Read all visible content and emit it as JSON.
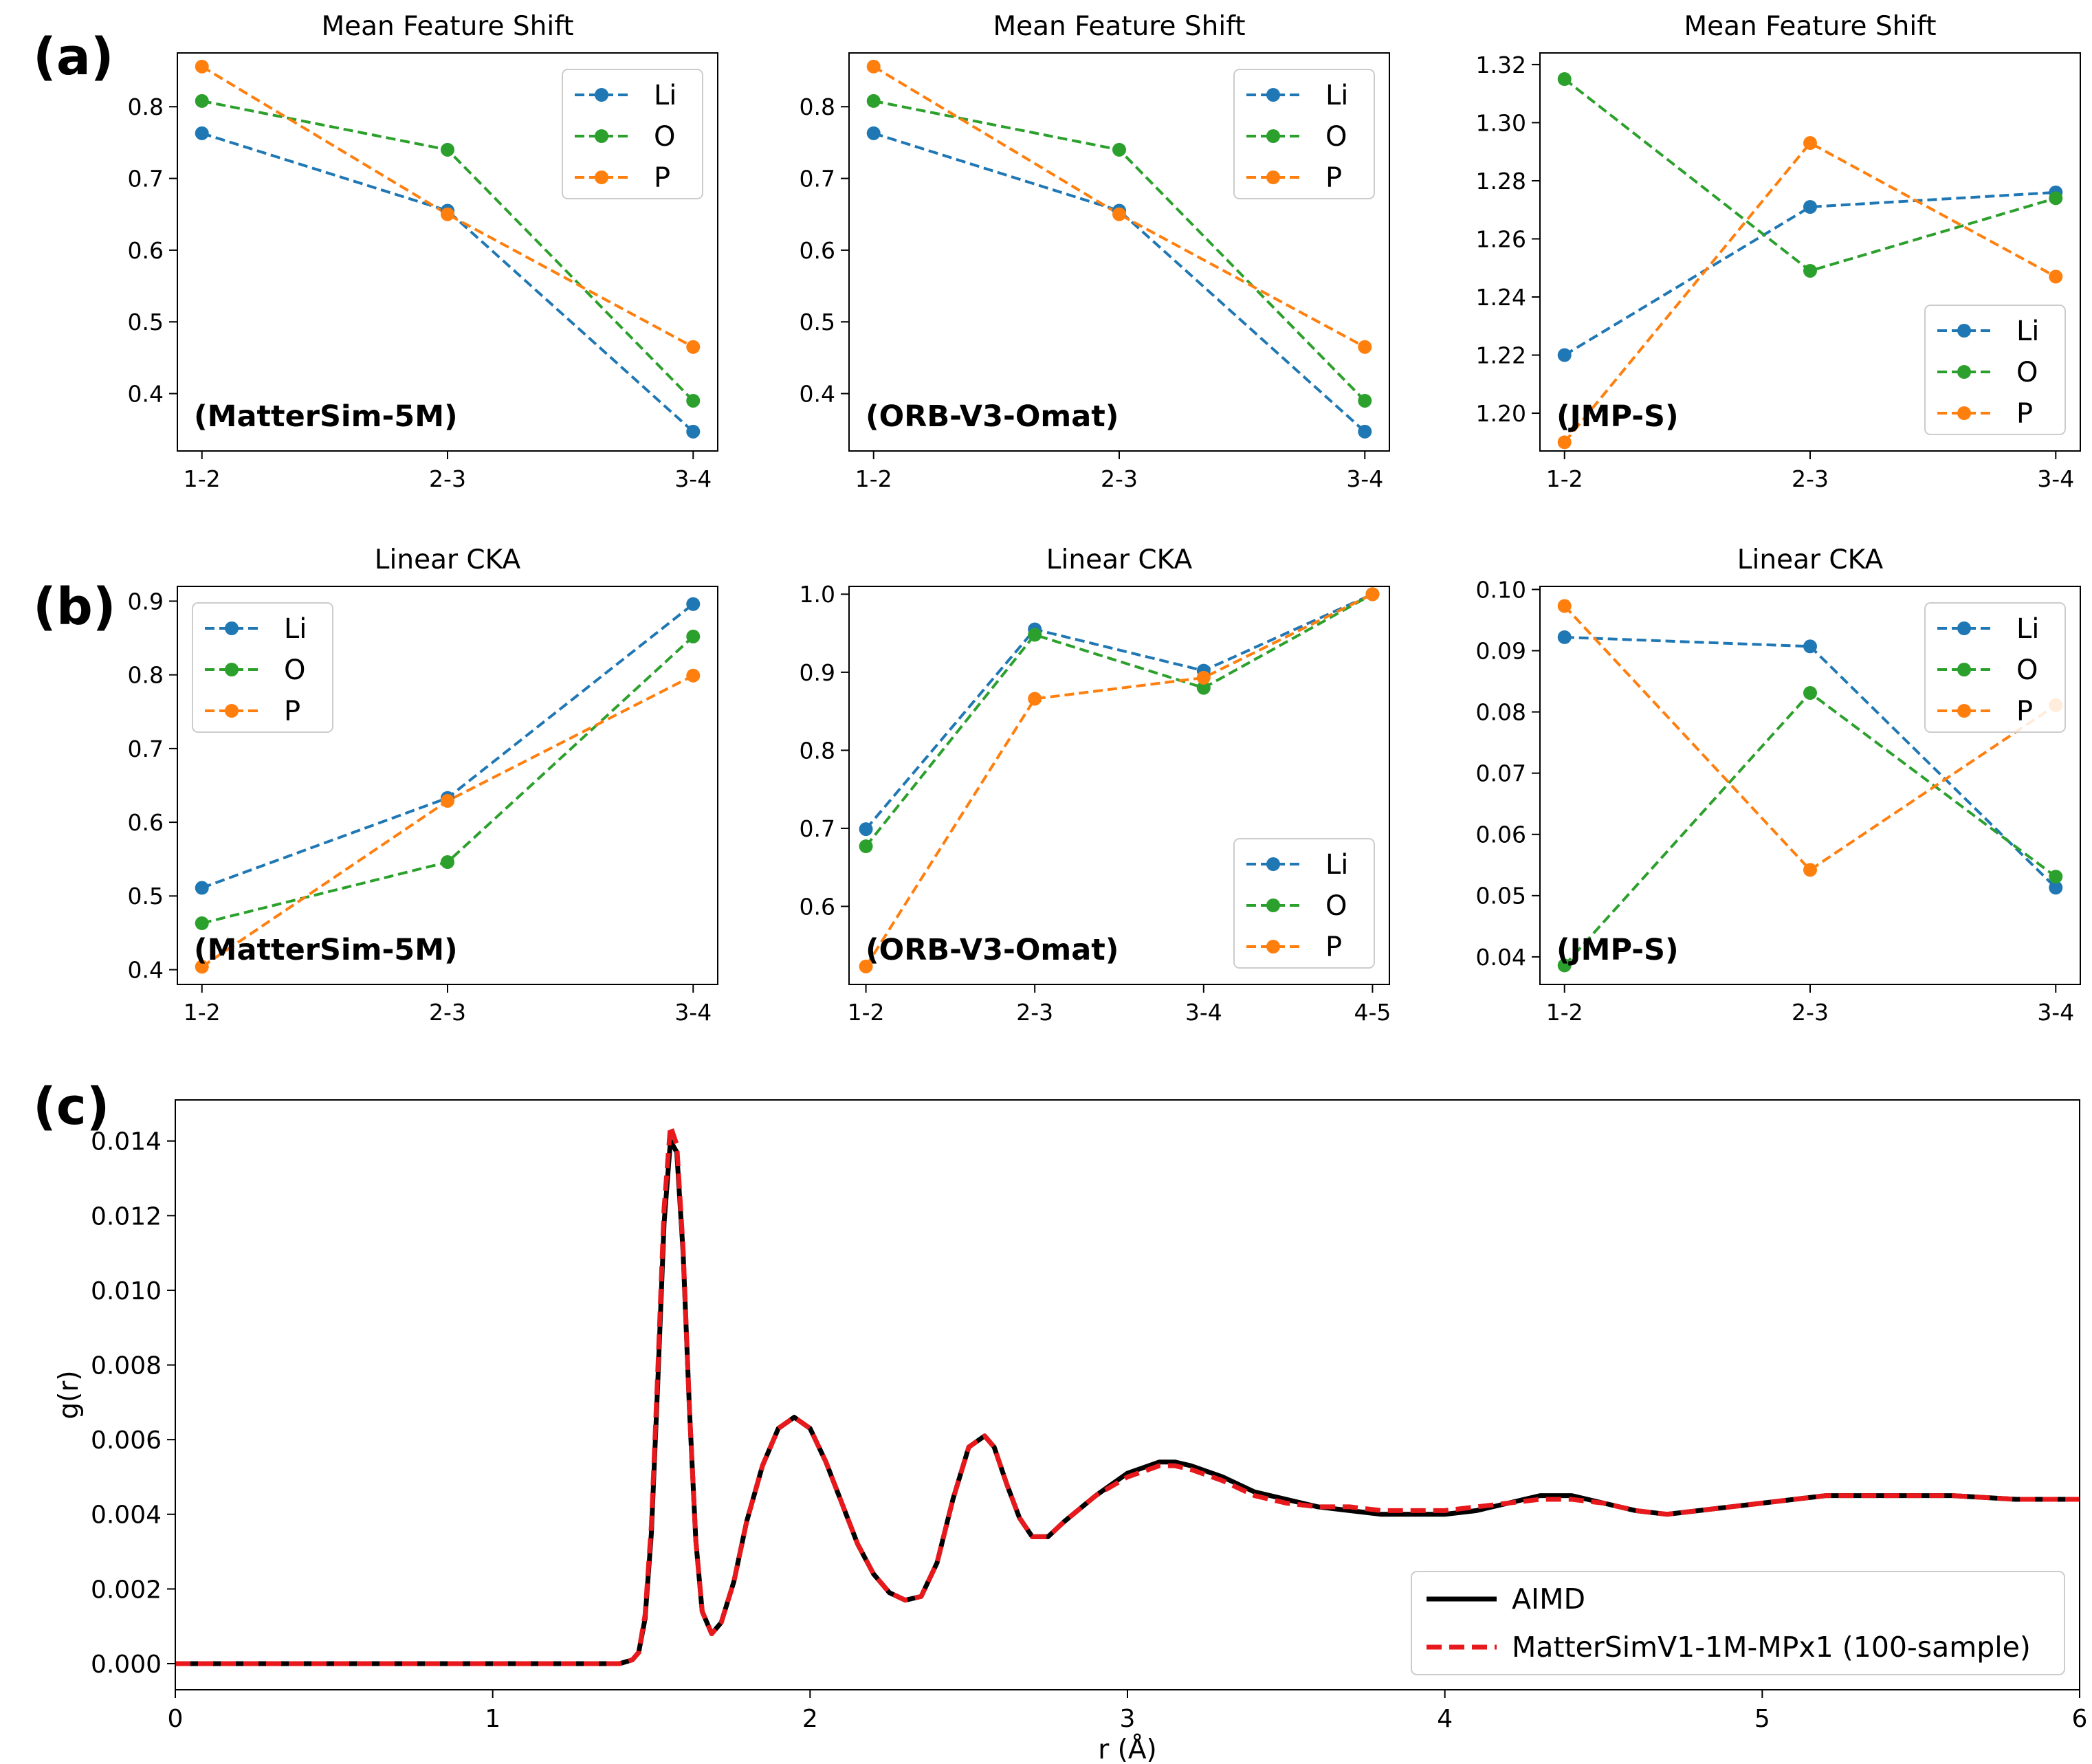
{
  "colors": {
    "Li": "#1f77b4",
    "O": "#2ca02c",
    "P": "#ff7f0e",
    "AIMD": "#000000",
    "MatterSim": "#e8191c"
  },
  "panel_labels": [
    "(a)",
    "(b)",
    "(c)"
  ],
  "chart_data": [
    {
      "id": "a1",
      "type": "line",
      "title": "Mean Feature Shift",
      "model_label": "(MatterSim-5M)",
      "categories": [
        "1-2",
        "2-3",
        "3-4"
      ],
      "series": [
        {
          "name": "Li",
          "values": [
            0.763,
            0.655,
            0.347
          ]
        },
        {
          "name": "O",
          "values": [
            0.808,
            0.74,
            0.39
          ]
        },
        {
          "name": "P",
          "values": [
            0.856,
            0.65,
            0.465
          ]
        }
      ],
      "ylim": [
        0.32,
        0.875
      ],
      "yticks": [
        0.4,
        0.5,
        0.6,
        0.7,
        0.8
      ],
      "ytick_labels": [
        "0.4",
        "0.5",
        "0.6",
        "0.7",
        "0.8"
      ],
      "legend": "top-right"
    },
    {
      "id": "a2",
      "type": "line",
      "title": "Mean Feature Shift",
      "model_label": "(ORB-V3-Omat)",
      "categories": [
        "1-2",
        "2-3",
        "3-4"
      ],
      "series": [
        {
          "name": "Li",
          "values": [
            0.763,
            0.655,
            0.347
          ]
        },
        {
          "name": "O",
          "values": [
            0.808,
            0.74,
            0.39
          ]
        },
        {
          "name": "P",
          "values": [
            0.856,
            0.65,
            0.465
          ]
        }
      ],
      "ylim": [
        0.32,
        0.875
      ],
      "yticks": [
        0.4,
        0.5,
        0.6,
        0.7,
        0.8
      ],
      "ytick_labels": [
        "0.4",
        "0.5",
        "0.6",
        "0.7",
        "0.8"
      ],
      "legend": "top-right"
    },
    {
      "id": "a3",
      "type": "line",
      "title": "Mean Feature Shift",
      "model_label": "(JMP-S)",
      "categories": [
        "1-2",
        "2-3",
        "3-4"
      ],
      "series": [
        {
          "name": "Li",
          "values": [
            1.22,
            1.271,
            1.276
          ]
        },
        {
          "name": "O",
          "values": [
            1.315,
            1.249,
            1.274
          ]
        },
        {
          "name": "P",
          "values": [
            1.19,
            1.293,
            1.247
          ]
        }
      ],
      "ylim": [
        1.187,
        1.324
      ],
      "yticks": [
        1.2,
        1.22,
        1.24,
        1.26,
        1.28,
        1.3,
        1.32
      ],
      "ytick_labels": [
        "1.20",
        "1.22",
        "1.24",
        "1.26",
        "1.28",
        "1.30",
        "1.32"
      ],
      "legend": "bottom-right"
    },
    {
      "id": "b1",
      "type": "line",
      "title": "Linear CKA",
      "model_label": "(MatterSim-5M)",
      "categories": [
        "1-2",
        "2-3",
        "3-4"
      ],
      "series": [
        {
          "name": "Li",
          "values": [
            0.511,
            0.633,
            0.896
          ]
        },
        {
          "name": "O",
          "values": [
            0.463,
            0.546,
            0.852
          ]
        },
        {
          "name": "P",
          "values": [
            0.404,
            0.629,
            0.799
          ]
        }
      ],
      "ylim": [
        0.38,
        0.92
      ],
      "yticks": [
        0.4,
        0.5,
        0.6,
        0.7,
        0.8,
        0.9
      ],
      "ytick_labels": [
        "0.4",
        "0.5",
        "0.6",
        "0.7",
        "0.8",
        "0.9"
      ],
      "legend": "top-left"
    },
    {
      "id": "b2",
      "type": "line",
      "title": "Linear CKA",
      "model_label": "(ORB-V3-Omat)",
      "categories": [
        "1-2",
        "2-3",
        "3-4",
        "4-5"
      ],
      "series": [
        {
          "name": "Li",
          "values": [
            0.699,
            0.955,
            0.902,
            1.0
          ]
        },
        {
          "name": "O",
          "values": [
            0.677,
            0.948,
            0.88,
            1.0
          ]
        },
        {
          "name": "P",
          "values": [
            0.523,
            0.866,
            0.893,
            1.0
          ]
        }
      ],
      "ylim": [
        0.5,
        1.01
      ],
      "yticks": [
        0.6,
        0.7,
        0.8,
        0.9,
        1.0
      ],
      "ytick_labels": [
        "0.6",
        "0.7",
        "0.8",
        "0.9",
        "1.0"
      ],
      "legend": "bottom-right"
    },
    {
      "id": "b3",
      "type": "line",
      "title": "Linear CKA",
      "model_label": "(JMP-S)",
      "categories": [
        "1-2",
        "2-3",
        "3-4"
      ],
      "series": [
        {
          "name": "Li",
          "values": [
            0.0922,
            0.0907,
            0.0513
          ]
        },
        {
          "name": "O",
          "values": [
            0.0386,
            0.0831,
            0.0531
          ]
        },
        {
          "name": "P",
          "values": [
            0.0973,
            0.0542,
            0.0811
          ]
        }
      ],
      "ylim": [
        0.0355,
        0.1005
      ],
      "yticks": [
        0.04,
        0.05,
        0.06,
        0.07,
        0.08,
        0.09,
        0.1
      ],
      "ytick_labels": [
        "0.04",
        "0.05",
        "0.06",
        "0.07",
        "0.08",
        "0.09",
        "0.10"
      ],
      "legend": "top-right"
    },
    {
      "id": "c",
      "type": "line",
      "title": "",
      "xlabel": "r (Å)",
      "ylabel": "g(r)",
      "xlim": [
        0,
        6
      ],
      "ylim": [
        -0.0007,
        0.0151
      ],
      "xticks": [
        0,
        1,
        2,
        3,
        4,
        5,
        6
      ],
      "xtick_labels": [
        "0",
        "1",
        "2",
        "3",
        "4",
        "5",
        "6"
      ],
      "yticks": [
        0,
        0.002,
        0.004,
        0.006,
        0.008,
        0.01,
        0.012,
        0.014
      ],
      "ytick_labels": [
        "0.000",
        "0.002",
        "0.004",
        "0.006",
        "0.008",
        "0.010",
        "0.012",
        "0.014"
      ],
      "series": [
        {
          "name": "AIMD",
          "style": "solid",
          "x": [
            0,
            1.0,
            1.4,
            1.44,
            1.46,
            1.48,
            1.5,
            1.52,
            1.54,
            1.56,
            1.58,
            1.6,
            1.62,
            1.64,
            1.66,
            1.69,
            1.72,
            1.76,
            1.8,
            1.85,
            1.9,
            1.95,
            2.0,
            2.05,
            2.1,
            2.15,
            2.2,
            2.25,
            2.3,
            2.35,
            2.4,
            2.45,
            2.5,
            2.55,
            2.58,
            2.62,
            2.66,
            2.7,
            2.75,
            2.8,
            2.9,
            3.0,
            3.1,
            3.15,
            3.2,
            3.3,
            3.4,
            3.5,
            3.6,
            3.7,
            3.8,
            3.9,
            4.0,
            4.1,
            4.2,
            4.3,
            4.4,
            4.5,
            4.6,
            4.7,
            4.8,
            5.0,
            5.2,
            5.4,
            5.6,
            5.8,
            6.0
          ],
          "y": [
            0,
            0,
            0,
            0.0001,
            0.0003,
            0.0012,
            0.0035,
            0.0075,
            0.0118,
            0.014,
            0.0137,
            0.011,
            0.0068,
            0.0033,
            0.0014,
            0.0008,
            0.0011,
            0.0022,
            0.0038,
            0.0053,
            0.0063,
            0.0066,
            0.0063,
            0.0054,
            0.0043,
            0.0032,
            0.0024,
            0.0019,
            0.0017,
            0.0018,
            0.0027,
            0.0044,
            0.0058,
            0.0061,
            0.0058,
            0.0048,
            0.0039,
            0.0034,
            0.0034,
            0.0038,
            0.0045,
            0.0051,
            0.0054,
            0.0054,
            0.0053,
            0.005,
            0.0046,
            0.0044,
            0.0042,
            0.0041,
            0.004,
            0.004,
            0.004,
            0.0041,
            0.0043,
            0.0045,
            0.0045,
            0.0043,
            0.0041,
            0.004,
            0.0041,
            0.0043,
            0.0045,
            0.0045,
            0.0045,
            0.0044,
            0.0044
          ]
        },
        {
          "name": "MatterSimV1-1M-MPx1 (100-sample)",
          "style": "dashed",
          "x": [
            0,
            1.0,
            1.4,
            1.44,
            1.46,
            1.48,
            1.5,
            1.52,
            1.54,
            1.56,
            1.58,
            1.6,
            1.62,
            1.64,
            1.66,
            1.69,
            1.72,
            1.76,
            1.8,
            1.85,
            1.9,
            1.95,
            2.0,
            2.05,
            2.1,
            2.15,
            2.2,
            2.25,
            2.3,
            2.35,
            2.4,
            2.45,
            2.5,
            2.55,
            2.58,
            2.62,
            2.66,
            2.7,
            2.75,
            2.8,
            2.9,
            3.0,
            3.1,
            3.15,
            3.2,
            3.3,
            3.4,
            3.5,
            3.6,
            3.7,
            3.8,
            3.9,
            4.0,
            4.1,
            4.2,
            4.3,
            4.4,
            4.5,
            4.6,
            4.7,
            4.8,
            5.0,
            5.2,
            5.4,
            5.6,
            5.8,
            6.0
          ],
          "y": [
            0,
            0,
            0,
            0.0001,
            0.0003,
            0.0013,
            0.0037,
            0.0078,
            0.0122,
            0.0144,
            0.0139,
            0.0111,
            0.0068,
            0.0033,
            0.0014,
            0.0008,
            0.0011,
            0.0022,
            0.0038,
            0.0053,
            0.0063,
            0.0066,
            0.0063,
            0.0054,
            0.0043,
            0.0032,
            0.0024,
            0.0019,
            0.0017,
            0.0018,
            0.0027,
            0.0044,
            0.0058,
            0.0061,
            0.0058,
            0.0048,
            0.0039,
            0.0034,
            0.0034,
            0.0038,
            0.0045,
            0.005,
            0.0053,
            0.0053,
            0.0052,
            0.0049,
            0.0045,
            0.0043,
            0.0042,
            0.0042,
            0.0041,
            0.0041,
            0.0041,
            0.0042,
            0.0043,
            0.0044,
            0.0044,
            0.0043,
            0.0041,
            0.004,
            0.0041,
            0.0043,
            0.0045,
            0.0045,
            0.0045,
            0.0044,
            0.0044
          ]
        }
      ],
      "legend": "bottom-right"
    }
  ]
}
